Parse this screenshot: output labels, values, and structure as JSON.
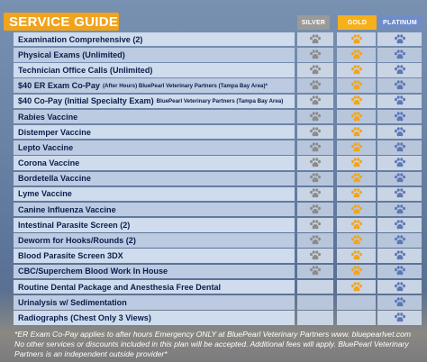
{
  "header": {
    "title": "SERVICE GUIDE",
    "columns": [
      "SILVER",
      "GOLD",
      "PLATINUM"
    ]
  },
  "colors": {
    "silver_paw": "#8c8c8c",
    "gold_paw": "#f2a51a",
    "platinum_paw": "#5d78b7"
  },
  "rows": [
    {
      "label": "Examination Comprehensive (2)",
      "sub": "",
      "silver": true,
      "gold": true,
      "platinum": true
    },
    {
      "label": "Physical Exams (Unlimited)",
      "sub": "",
      "silver": true,
      "gold": true,
      "platinum": true
    },
    {
      "label": "Technician Office Calls (Unlimited)",
      "sub": "",
      "silver": true,
      "gold": true,
      "platinum": true
    },
    {
      "label": "$40 ER Exam Co-Pay",
      "sub": "(After Hours) BluePearl Veterinary Partners (Tampa Bay Area)*",
      "silver": true,
      "gold": true,
      "platinum": true
    },
    {
      "label": "$40 Co-Pay (Initial Specialty Exam)",
      "sub": "BluePearl Veterinary Partners (Tampa Bay Area)",
      "silver": true,
      "gold": true,
      "platinum": true
    },
    {
      "label": "Rabies Vaccine",
      "sub": "",
      "silver": true,
      "gold": true,
      "platinum": true
    },
    {
      "label": "Distemper Vaccine",
      "sub": "",
      "silver": true,
      "gold": true,
      "platinum": true
    },
    {
      "label": "Lepto Vaccine",
      "sub": "",
      "silver": true,
      "gold": true,
      "platinum": true
    },
    {
      "label": "Corona Vaccine",
      "sub": "",
      "silver": true,
      "gold": true,
      "platinum": true
    },
    {
      "label": "Bordetella Vaccine",
      "sub": "",
      "silver": true,
      "gold": true,
      "platinum": true
    },
    {
      "label": "Lyme Vaccine",
      "sub": "",
      "silver": true,
      "gold": true,
      "platinum": true
    },
    {
      "label": "Canine Influenza Vaccine",
      "sub": "",
      "silver": true,
      "gold": true,
      "platinum": true
    },
    {
      "label": "Intestinal Parasite Screen (2)",
      "sub": "",
      "silver": true,
      "gold": true,
      "platinum": true
    },
    {
      "label": "Deworm for Hooks/Rounds (2)",
      "sub": "",
      "silver": true,
      "gold": true,
      "platinum": true
    },
    {
      "label": "Blood Parasite Screen 3DX",
      "sub": "",
      "silver": true,
      "gold": true,
      "platinum": true
    },
    {
      "label": "CBC/Superchem Blood Work In House",
      "sub": "",
      "silver": true,
      "gold": true,
      "platinum": true
    },
    {
      "label": "Routine Dental Package and Anesthesia Free Dental",
      "sub": "",
      "silver": false,
      "gold": true,
      "platinum": true
    },
    {
      "label": "Urinalysis w/ Sedimentation",
      "sub": "",
      "silver": false,
      "gold": false,
      "platinum": true
    },
    {
      "label": "Radiographs (Chest Only 3 Views)",
      "sub": "",
      "silver": false,
      "gold": false,
      "platinum": true
    }
  ],
  "footnote": "*ER Exam Co-Pay applies to after hours Emergency ONLY at BluePearl Veterinary Partners www. bluepearlvet.com  No other services or discounts included in this plan will be accepted.  Additional fees will apply.  BluePearl Veterinary Partners is an independent outside provider*"
}
